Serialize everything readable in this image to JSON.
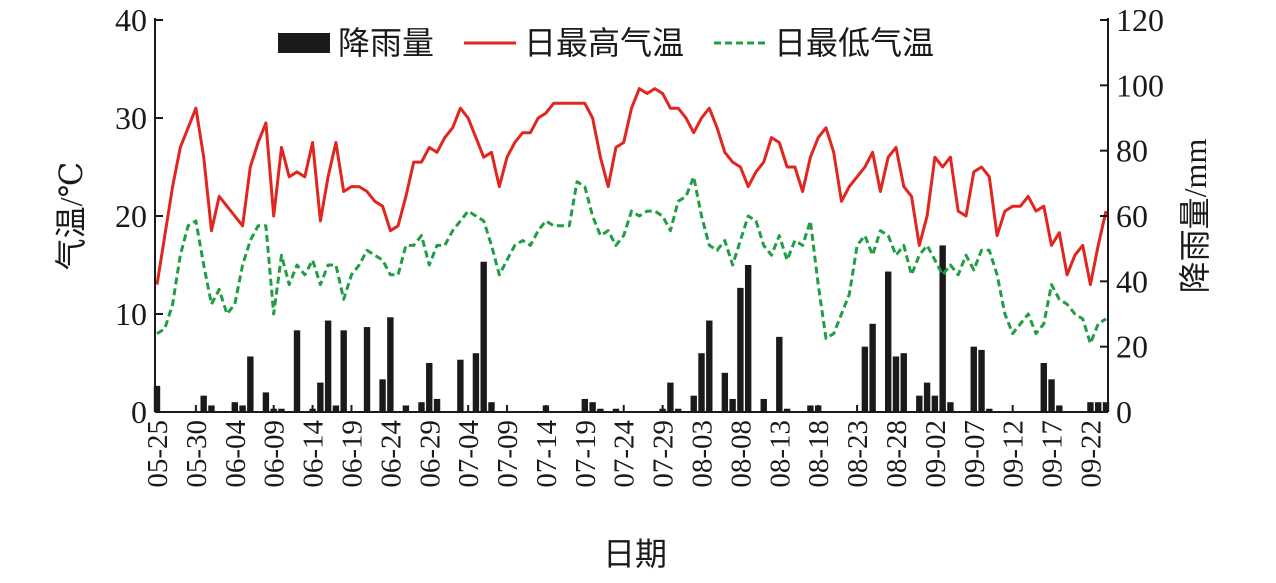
{
  "chart_data": {
    "type": "combo",
    "x_label": "日期",
    "y_label": "气温/℃",
    "y2_label": "降雨量/mm",
    "legend": "top",
    "categories": [
      "05-25",
      null,
      null,
      null,
      null,
      "05-30",
      null,
      null,
      null,
      null,
      "06-04",
      null,
      null,
      null,
      null,
      "06-09",
      null,
      null,
      null,
      null,
      "06-14",
      null,
      null,
      null,
      null,
      "06-19",
      null,
      null,
      null,
      null,
      "06-24",
      null,
      null,
      null,
      null,
      "06-29",
      null,
      null,
      null,
      null,
      "07-04",
      null,
      null,
      null,
      null,
      "07-09",
      null,
      null,
      null,
      null,
      "07-14",
      null,
      null,
      null,
      null,
      "07-19",
      null,
      null,
      null,
      null,
      "07-24",
      null,
      null,
      null,
      null,
      "07-29",
      null,
      null,
      null,
      null,
      "08-03",
      null,
      null,
      null,
      null,
      "08-08",
      null,
      null,
      null,
      null,
      "08-13",
      null,
      null,
      null,
      null,
      "08-18",
      null,
      null,
      null,
      null,
      "08-23",
      null,
      null,
      null,
      null,
      "08-28",
      null,
      null,
      null,
      null,
      "09-02",
      null,
      null,
      null,
      null,
      "09-07",
      null,
      null,
      null,
      null,
      "09-12",
      null,
      null,
      null,
      null,
      "09-17",
      null,
      null,
      null,
      null,
      "09-22",
      null,
      null
    ],
    "series": [
      {
        "name": "降雨量",
        "type": "bar",
        "axis": "y2",
        "color": "#1a1a1a",
        "values": [
          8,
          0,
          0,
          0,
          0,
          0,
          5,
          2,
          0,
          0,
          3,
          2,
          17,
          0,
          6,
          1,
          1,
          0,
          25,
          0,
          1,
          9,
          28,
          2,
          25,
          0,
          0,
          26,
          0,
          10,
          29,
          0,
          2,
          0,
          3,
          15,
          4,
          0,
          0,
          16,
          0,
          18,
          46,
          3,
          0,
          0,
          0,
          0,
          0,
          0,
          2,
          0,
          0,
          0,
          0,
          4,
          3,
          1,
          0,
          1,
          0,
          0,
          0,
          0,
          0,
          1,
          9,
          1,
          0,
          5,
          18,
          28,
          0,
          12,
          4,
          38,
          45,
          0,
          4,
          0,
          23,
          1,
          0,
          0,
          2,
          2,
          0,
          0,
          0,
          0,
          0,
          20,
          27,
          0,
          43,
          17,
          18,
          0,
          5,
          9,
          5,
          51,
          3,
          0,
          0,
          20,
          19,
          1,
          0,
          0,
          0,
          0,
          0,
          0,
          15,
          10,
          2,
          0,
          0,
          0,
          3,
          3,
          3
        ]
      },
      {
        "name": "日最高气温",
        "type": "line",
        "color": "#e0261e",
        "values": [
          13,
          18,
          23,
          27,
          29,
          31,
          26,
          18.5,
          22,
          21,
          20,
          19,
          25,
          27.5,
          29.5,
          20,
          27,
          24,
          24.5,
          24,
          27.5,
          19.5,
          24,
          27.5,
          22.5,
          23,
          23,
          22.5,
          21.5,
          21,
          18.5,
          19,
          22,
          25.5,
          25.5,
          27,
          26.5,
          28,
          29,
          31,
          30,
          28,
          26,
          26.5,
          23,
          26,
          27.5,
          28.5,
          28.5,
          30,
          30.5,
          31.5,
          31.5,
          31.5,
          31.5,
          31.5,
          30,
          26,
          23,
          27,
          27.5,
          31,
          33,
          32.5,
          33,
          32.5,
          31,
          31,
          30,
          28.5,
          30,
          31,
          29,
          26.5,
          25.5,
          25,
          23,
          24.5,
          25.5,
          28,
          27.5,
          25,
          25,
          22.5,
          26,
          28,
          29,
          26.5,
          21.5,
          23,
          24,
          25,
          26.5,
          22.5,
          26,
          27,
          23,
          22,
          17,
          20,
          26,
          25,
          26,
          20.5,
          20,
          24.5,
          25,
          24,
          18,
          20.5,
          21,
          21,
          22,
          20.5,
          21,
          17,
          18.3,
          14,
          16,
          17,
          13,
          17,
          20.5
        ]
      },
      {
        "name": "日最低气温",
        "type": "line",
        "dashed": true,
        "color": "#1f9e45",
        "values": [
          8,
          8.5,
          11,
          16,
          19,
          19.5,
          15,
          11,
          12.5,
          10,
          11,
          15,
          17.5,
          19,
          19,
          10,
          16,
          13,
          15,
          14,
          15.5,
          13,
          15,
          15,
          11.5,
          14,
          15,
          16.5,
          16,
          15.5,
          14,
          14,
          17,
          17,
          18,
          15,
          17,
          17,
          18.5,
          19.5,
          20.5,
          20,
          19.5,
          17,
          14,
          15.5,
          17,
          17.5,
          17,
          18.5,
          19.5,
          19,
          19,
          19,
          23.5,
          23,
          20,
          18,
          18.5,
          17,
          18,
          20.5,
          20,
          20.5,
          20.5,
          20,
          18.5,
          21.5,
          22,
          24,
          20,
          17,
          16.5,
          17.5,
          15,
          17.5,
          20,
          19.5,
          17,
          16,
          18,
          15.5,
          17.5,
          17,
          19.5,
          13,
          7.5,
          8,
          10,
          12,
          17,
          18,
          16,
          18.5,
          18,
          16,
          17,
          14,
          16,
          17,
          15.5,
          14,
          15,
          14,
          16,
          14.5,
          16.5,
          16.5,
          14,
          10,
          8,
          9,
          10,
          8,
          9,
          13,
          11.5,
          11,
          10,
          9.5,
          7,
          9,
          9.5
        ]
      }
    ],
    "ylim": [
      0,
      40
    ],
    "yticks": [
      0,
      10,
      20,
      30,
      40
    ],
    "y2lim": [
      0,
      120
    ],
    "y2ticks": [
      0,
      20,
      40,
      60,
      80,
      100,
      120
    ]
  }
}
